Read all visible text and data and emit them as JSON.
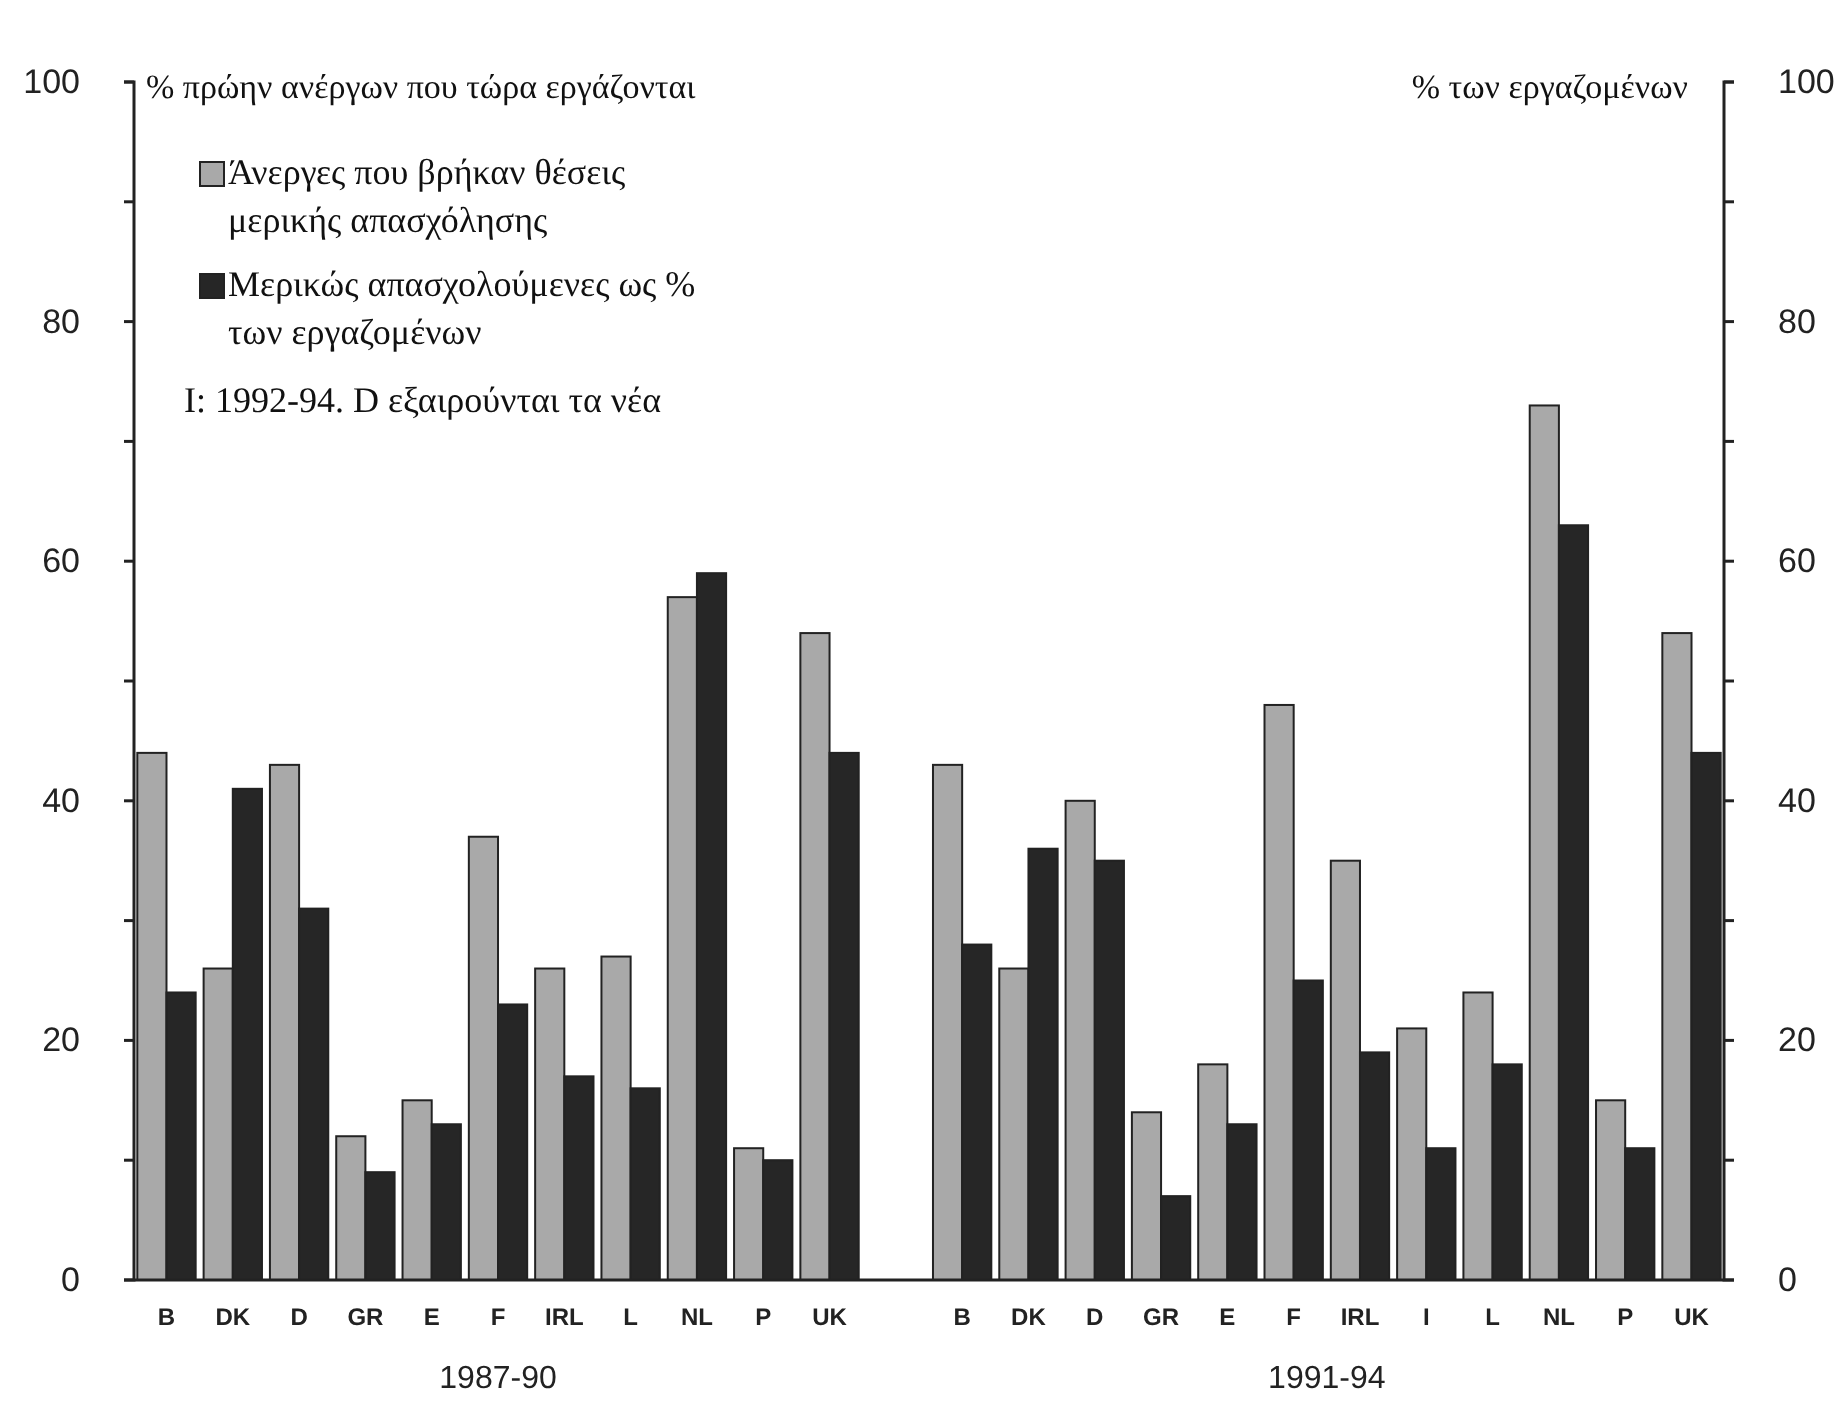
{
  "chart_data": {
    "type": "bar",
    "ylabel": "% πρώην ανέργων που τώρα εργάζονται",
    "y2label": "% των εργαζομένων",
    "categories": [
      "B",
      "DK",
      "D",
      "GR",
      "E",
      "F",
      "IRL",
      "L",
      "NL",
      "P",
      "UK",
      null,
      "B",
      "DK",
      "D",
      "GR",
      "E",
      "F",
      "IRL",
      "I",
      "L",
      "NL",
      "P",
      "UK"
    ],
    "series": [
      {
        "name": "Άνεργες που βρήκαν θέσεις μερικής απασχόλησης",
        "color": "#a9a9a9",
        "values": [
          44,
          26,
          43,
          12,
          15,
          37,
          26,
          27,
          57,
          11,
          54,
          null,
          43,
          26,
          40,
          14,
          18,
          48,
          35,
          21,
          24,
          73,
          15,
          54
        ]
      },
      {
        "name": "Μερικώς απασχολούμενες ως % των εργαζομένων",
        "color": "#262626",
        "values": [
          24,
          41,
          31,
          9,
          13,
          23,
          17,
          16,
          59,
          10,
          44,
          null,
          28,
          36,
          35,
          7,
          13,
          25,
          19,
          11,
          18,
          63,
          11,
          44
        ]
      }
    ],
    "ylim": [
      0,
      100
    ],
    "yticks": [
      0,
      {
        "value": 10,
        "label": null
      },
      20,
      {
        "value": 30,
        "label": null
      },
      40,
      {
        "value": 50,
        "label": null
      },
      60,
      {
        "value": 70,
        "label": null
      },
      80,
      {
        "value": 90,
        "label": null
      },
      100
    ],
    "y2lim": [
      0,
      100
    ],
    "y2ticks": [
      0,
      {
        "value": 10,
        "label": null
      },
      20,
      {
        "value": 30,
        "label": null
      },
      40,
      {
        "value": 50,
        "label": null
      },
      60,
      {
        "value": 70,
        "label": null
      },
      80,
      {
        "value": 90,
        "label": null
      },
      100
    ],
    "annotations": [
      "1987-90",
      "1991-94",
      "I: 1992-94. D εξαιρούνται τα νέα"
    ],
    "legend": "top left",
    "grid": false
  }
}
